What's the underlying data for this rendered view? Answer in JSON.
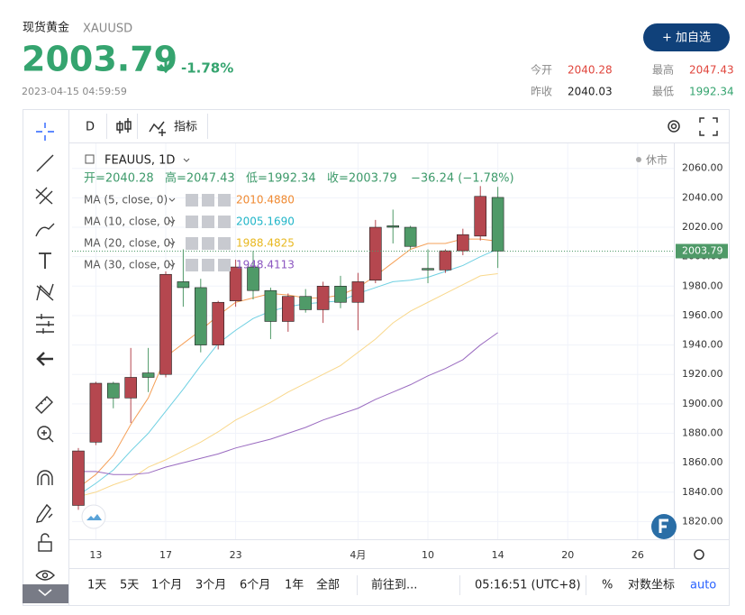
{
  "header": {
    "title": "现货黄金",
    "symbol": "XAUUSD",
    "price": "2003.79",
    "change": "-1.78%",
    "time": "2023-04-15 04:59:59",
    "button": "+ 加自选",
    "stats": [
      {
        "label": "今开",
        "value": "2040.28"
      },
      {
        "label": "最高",
        "value": "2047.43"
      },
      {
        "label": "昨收",
        "value": "2040.03"
      },
      {
        "label": "最低",
        "value": "1992.34"
      }
    ]
  },
  "toolbar": {
    "interval": "D",
    "indicators": "指标"
  },
  "legend": {
    "symbol": "FEAUUS, 1D",
    "status": "休市",
    "ohlc": [
      "开=2040.28",
      "高=2047.43",
      "低=1992.34",
      "收=2003.79"
    ],
    "change": "−36.24 (−1.78%)",
    "ma": [
      {
        "name": "MA (5, close, 0)",
        "value": "2010.4880"
      },
      {
        "name": "MA (10, close, 0)",
        "value": "2005.1690"
      },
      {
        "name": "MA (20, close, 0)",
        "value": "1988.4825"
      },
      {
        "name": "MA (30, close, 0)",
        "value": "1948.4113"
      }
    ]
  },
  "chart": {
    "type": "candlestick",
    "up_color": "#b5474f",
    "down_color": "#4f9a68",
    "ylim": [
      1808,
      2077
    ],
    "xlim": [
      -0.36,
      34.07
    ],
    "yticks": [
      {
        "value": 1820,
        "label": "1820.00"
      },
      {
        "value": 1840,
        "label": "1840.00"
      },
      {
        "value": 1860,
        "label": "1860.00"
      },
      {
        "value": 1880,
        "label": "1880.00"
      },
      {
        "value": 1900,
        "label": "1900.00"
      },
      {
        "value": 1920,
        "label": "1920.00"
      },
      {
        "value": 1940,
        "label": "1940.00"
      },
      {
        "value": 1960,
        "label": "1960.00"
      },
      {
        "value": 1980,
        "label": "1980.00"
      },
      {
        "value": 2000,
        "label": "2000.00"
      },
      {
        "value": 2020,
        "label": "2020.00"
      },
      {
        "value": 2040,
        "label": "2040.00"
      },
      {
        "value": 2060,
        "label": "2060.00"
      }
    ],
    "xticks": [
      {
        "value": 1,
        "label": "13"
      },
      {
        "value": 5,
        "label": "17"
      },
      {
        "value": 9,
        "label": "23"
      },
      {
        "value": 16,
        "label": "4月"
      },
      {
        "value": 20,
        "label": "10"
      },
      {
        "value": 24,
        "label": "14"
      },
      {
        "value": 28,
        "label": "20"
      },
      {
        "value": 32,
        "label": "26"
      }
    ],
    "candles": [
      {
        "open": 1831,
        "high": 1870,
        "low": 1828,
        "close": 1868
      },
      {
        "open": 1874,
        "high": 1915,
        "low": 1872,
        "close": 1914
      },
      {
        "open": 1914,
        "high": 1915,
        "low": 1897,
        "close": 1904
      },
      {
        "open": 1904,
        "high": 1938,
        "low": 1887,
        "close": 1918
      },
      {
        "open": 1921,
        "high": 1938,
        "low": 1908,
        "close": 1918
      },
      {
        "open": 1920,
        "high": 1990,
        "low": 1918,
        "close": 1988
      },
      {
        "open": 1983,
        "high": 2005,
        "low": 1966,
        "close": 1979
      },
      {
        "open": 1979,
        "high": 1985,
        "low": 1935,
        "close": 1940
      },
      {
        "open": 1940,
        "high": 1970,
        "low": 1937,
        "close": 1969
      },
      {
        "open": 1970,
        "high": 1998,
        "low": 1966,
        "close": 1993
      },
      {
        "open": 1993,
        "high": 2004,
        "low": 1971,
        "close": 1977
      },
      {
        "open": 1977,
        "high": 1979,
        "low": 1944,
        "close": 1956
      },
      {
        "open": 1956,
        "high": 1975,
        "low": 1949,
        "close": 1973
      },
      {
        "open": 1973,
        "high": 1978,
        "low": 1962,
        "close": 1964
      },
      {
        "open": 1964,
        "high": 1983,
        "low": 1955,
        "close": 1980
      },
      {
        "open": 1980,
        "high": 1987,
        "low": 1965,
        "close": 1969
      },
      {
        "open": 1969,
        "high": 1989,
        "low": 1950,
        "close": 1983
      },
      {
        "open": 1984,
        "high": 2025,
        "low": 1982,
        "close": 2020
      },
      {
        "open": 2021,
        "high": 2032,
        "low": 2009,
        "close": 2020
      },
      {
        "open": 2020,
        "high": 2021,
        "low": 2005,
        "close": 2007
      },
      {
        "open": 1992,
        "high": 2005,
        "low": 1982,
        "close": 1991
      },
      {
        "open": 1991,
        "high": 2005,
        "low": 1989,
        "close": 2004
      },
      {
        "open": 2004,
        "high": 2019,
        "low": 2001,
        "close": 2015
      },
      {
        "open": 2014,
        "high": 2048,
        "low": 2011,
        "close": 2041
      },
      {
        "open": 2040.28,
        "high": 2047.43,
        "low": 1992.34,
        "close": 2003.79
      }
    ],
    "ma_series": [
      {
        "color": "#f5a058",
        "values": [
          1843,
          1852,
          1865,
          1886,
          1904,
          1932,
          1941,
          1950,
          1960,
          1969,
          1972,
          1975,
          1974,
          1972,
          1972,
          1974,
          1979,
          1987,
          1996,
          2005,
          2009,
          2009,
          2012,
          2012,
          2010.488
        ]
      },
      {
        "color": "#6fd0e2",
        "values": [
          1838,
          1846,
          1855,
          1868,
          1880,
          1895,
          1910,
          1926,
          1941,
          1950,
          1958,
          1963,
          1966,
          1968,
          1969,
          1970,
          1975,
          1979,
          1983,
          1984,
          1986,
          1990,
          1994,
          2000,
          2005.169
        ]
      },
      {
        "color": "#f9d88c",
        "values": [
          1837,
          1840,
          1845,
          1849,
          1857,
          1862,
          1868,
          1874,
          1881,
          1889,
          1895,
          1901,
          1908,
          1914,
          1920,
          1926,
          1935,
          1944,
          1955,
          1963,
          1969,
          1975,
          1981,
          1987,
          1988.4825
        ]
      },
      {
        "color": "#9a6bc0",
        "values": [
          1854,
          1854,
          1852,
          1852,
          1853,
          1857,
          1860,
          1863,
          1866,
          1870,
          1873,
          1876,
          1880,
          1884,
          1889,
          1893,
          1897,
          1903,
          1908,
          1913,
          1919,
          1924,
          1930,
          1940,
          1948.4113
        ]
      }
    ]
  },
  "bottom_bar": {
    "ranges": [
      "1天",
      "5天",
      "1个月",
      "3个月",
      "6个月",
      "1年",
      "全部"
    ],
    "goto": "前往到...",
    "clock": "05:16:51 (UTC+8)",
    "percent": "%",
    "log": "对数坐标",
    "auto": "auto"
  }
}
